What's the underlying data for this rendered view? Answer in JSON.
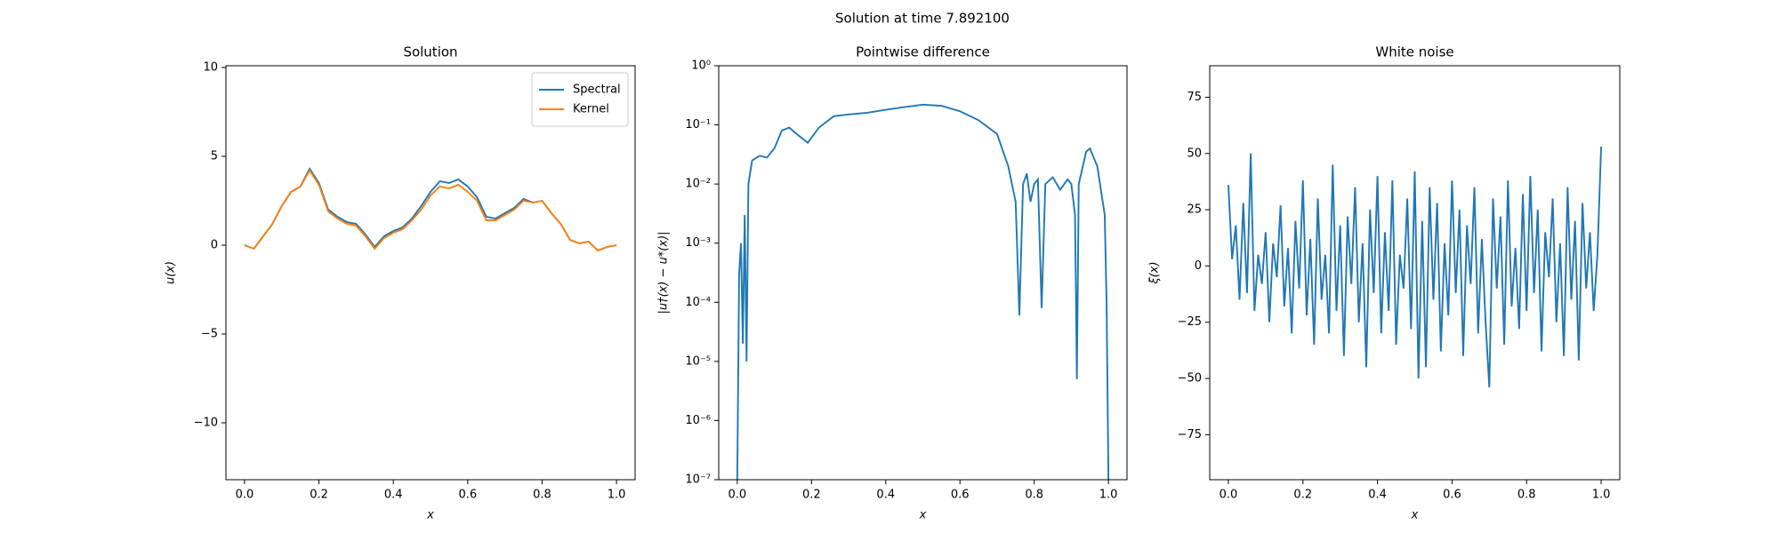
{
  "title": "Solution at time 7.892100",
  "chart_data": [
    {
      "type": "line",
      "title": "Solution",
      "xlabel": "x",
      "ylabel": "u(x)",
      "xlim": [
        -0.05,
        1.05
      ],
      "ylim": [
        -13.2,
        10.1
      ],
      "xticks": [
        {
          "value": 0,
          "label": "0.0"
        },
        0.2,
        0.4,
        0.6,
        0.8,
        {
          "value": 1,
          "label": "1.0"
        }
      ],
      "yticks": [
        {
          "value": -10,
          "label": "−10"
        },
        {
          "value": -5,
          "label": "−5"
        },
        0,
        5,
        10
      ],
      "legend": "upper right",
      "grid": false,
      "x": [
        0,
        0.025,
        0.05,
        0.075,
        0.1,
        0.125,
        0.15,
        0.175,
        0.2,
        0.225,
        0.25,
        0.275,
        0.3,
        0.325,
        0.35,
        0.375,
        0.4,
        0.425,
        0.45,
        0.475,
        0.5,
        0.525,
        0.55,
        0.575,
        0.6,
        0.625,
        0.65,
        0.675,
        0.7,
        0.725,
        0.75,
        0.775,
        0.8,
        0.825,
        0.85,
        0.875,
        0.9,
        0.925,
        0.95,
        0.975,
        1
      ],
      "series": [
        {
          "name": "Spectral",
          "color": "#1f77b4",
          "values": [
            0,
            -0.2,
            0.5,
            1.2,
            2.2,
            3.0,
            3.3,
            4.3,
            3.5,
            2.0,
            1.6,
            1.3,
            1.2,
            0.6,
            -0.1,
            0.5,
            0.8,
            1.0,
            1.5,
            2.2,
            3.0,
            3.6,
            3.5,
            3.7,
            3.3,
            2.7,
            1.6,
            1.5,
            1.8,
            2.1,
            2.6,
            2.4,
            2.5,
            1.8,
            1.2,
            0.3,
            0.1,
            0.2,
            -0.3,
            -0.1,
            0
          ]
        },
        {
          "name": "Kernel",
          "color": "#ff7f0e",
          "values": [
            0,
            -0.2,
            0.5,
            1.2,
            2.2,
            3.0,
            3.3,
            4.2,
            3.4,
            1.9,
            1.5,
            1.2,
            1.1,
            0.5,
            -0.2,
            0.4,
            0.7,
            0.9,
            1.4,
            2.0,
            2.8,
            3.3,
            3.2,
            3.4,
            3.0,
            2.5,
            1.4,
            1.4,
            1.7,
            2.0,
            2.5,
            2.4,
            2.5,
            1.8,
            1.2,
            0.3,
            0.1,
            0.2,
            -0.3,
            -0.1,
            0
          ]
        }
      ]
    },
    {
      "type": "line",
      "title": "Pointwise difference",
      "xlabel": "x",
      "ylabel": "|u†(x) − u*(x)|",
      "yscale": "log",
      "xlim": [
        -0.05,
        1.05
      ],
      "ylim": [
        1e-07,
        1
      ],
      "xticks": [
        {
          "value": 0,
          "label": "0.0"
        },
        0.2,
        0.4,
        0.6,
        0.8,
        {
          "value": 1,
          "label": "1.0"
        }
      ],
      "yticks": [
        {
          "value": 1e-07,
          "label": "10⁻⁷"
        },
        {
          "value": 1e-06,
          "label": "10⁻⁶"
        },
        {
          "value": 1e-05,
          "label": "10⁻⁵"
        },
        {
          "value": 0.0001,
          "label": "10⁻⁴"
        },
        {
          "value": 0.001,
          "label": "10⁻³"
        },
        {
          "value": 0.01,
          "label": "10⁻²"
        },
        {
          "value": 0.1,
          "label": "10⁻¹"
        },
        {
          "value": 1,
          "label": "10⁰"
        }
      ],
      "grid": false,
      "x": [
        0,
        0.005,
        0.01,
        0.015,
        0.02,
        0.025,
        0.03,
        0.04,
        0.06,
        0.08,
        0.1,
        0.12,
        0.14,
        0.16,
        0.19,
        0.22,
        0.26,
        0.3,
        0.35,
        0.4,
        0.45,
        0.5,
        0.55,
        0.6,
        0.65,
        0.7,
        0.73,
        0.75,
        0.76,
        0.77,
        0.78,
        0.79,
        0.8,
        0.81,
        0.82,
        0.83,
        0.85,
        0.87,
        0.89,
        0.9,
        0.91,
        0.915,
        0.92,
        0.94,
        0.95,
        0.97,
        0.99,
        0.995,
        1
      ],
      "series": [
        {
          "name": "difference",
          "color": "#1f77b4",
          "values": [
            1e-07,
            0.0003,
            0.001,
            2e-05,
            0.003,
            1e-05,
            0.01,
            0.025,
            0.03,
            0.028,
            0.04,
            0.08,
            0.09,
            0.07,
            0.05,
            0.09,
            0.14,
            0.15,
            0.16,
            0.18,
            0.2,
            0.22,
            0.21,
            0.17,
            0.12,
            0.07,
            0.02,
            0.005,
            6e-05,
            0.01,
            0.015,
            0.005,
            0.01,
            0.012,
            8e-05,
            0.01,
            0.013,
            0.008,
            0.012,
            0.01,
            0.003,
            5e-06,
            0.01,
            0.035,
            0.04,
            0.02,
            0.003,
            0.0001,
            1e-07
          ]
        }
      ]
    },
    {
      "type": "line",
      "title": "White noise",
      "xlabel": "x",
      "ylabel": "ξ(x)",
      "xlim": [
        -0.05,
        1.05
      ],
      "ylim": [
        -95,
        89
      ],
      "xticks": [
        {
          "value": 0,
          "label": "0.0"
        },
        0.2,
        0.4,
        0.6,
        0.8,
        {
          "value": 1,
          "label": "1.0"
        }
      ],
      "yticks": [
        {
          "value": -75,
          "label": "−75"
        },
        {
          "value": -50,
          "label": "−50"
        },
        {
          "value": -25,
          "label": "−25"
        },
        0,
        25,
        50,
        75
      ],
      "grid": false,
      "x": [
        0,
        0.01,
        0.02,
        0.03,
        0.04,
        0.05,
        0.06,
        0.07,
        0.08,
        0.09,
        0.1,
        0.11,
        0.12,
        0.13,
        0.14,
        0.15,
        0.16,
        0.17,
        0.18,
        0.19,
        0.2,
        0.21,
        0.22,
        0.23,
        0.24,
        0.25,
        0.26,
        0.27,
        0.28,
        0.29,
        0.3,
        0.31,
        0.32,
        0.33,
        0.34,
        0.35,
        0.36,
        0.37,
        0.38,
        0.39,
        0.4,
        0.41,
        0.42,
        0.43,
        0.44,
        0.45,
        0.46,
        0.47,
        0.48,
        0.49,
        0.5,
        0.51,
        0.52,
        0.53,
        0.54,
        0.55,
        0.56,
        0.57,
        0.58,
        0.59,
        0.6,
        0.61,
        0.62,
        0.63,
        0.64,
        0.65,
        0.66,
        0.67,
        0.68,
        0.69,
        0.7,
        0.71,
        0.72,
        0.73,
        0.74,
        0.75,
        0.76,
        0.77,
        0.78,
        0.79,
        0.8,
        0.81,
        0.82,
        0.83,
        0.84,
        0.85,
        0.86,
        0.87,
        0.88,
        0.89,
        0.9,
        0.91,
        0.92,
        0.93,
        0.94,
        0.95,
        0.96,
        0.97,
        0.98,
        0.99,
        1
      ],
      "series": [
        {
          "name": "noise",
          "color": "#1f77b4",
          "values": [
            36,
            3,
            18,
            -15,
            28,
            -12,
            50,
            -20,
            5,
            -8,
            15,
            -25,
            10,
            -5,
            27,
            -18,
            8,
            -30,
            20,
            -10,
            38,
            -22,
            12,
            -35,
            30,
            -15,
            5,
            -30,
            45,
            -20,
            18,
            -40,
            22,
            -8,
            35,
            -25,
            10,
            -45,
            25,
            -12,
            40,
            -30,
            15,
            -20,
            38,
            -35,
            5,
            -10,
            30,
            -28,
            42,
            -50,
            20,
            -45,
            35,
            -15,
            28,
            -38,
            10,
            -22,
            38,
            -12,
            25,
            -40,
            18,
            -8,
            35,
            -30,
            12,
            -25,
            -54,
            30,
            -10,
            22,
            -35,
            38,
            -18,
            8,
            -28,
            32,
            -20,
            40,
            -12,
            25,
            -38,
            15,
            -5,
            30,
            -25,
            10,
            -40,
            35,
            -15,
            20,
            -42,
            28,
            -10,
            15,
            -20,
            5,
            53
          ]
        }
      ]
    }
  ]
}
